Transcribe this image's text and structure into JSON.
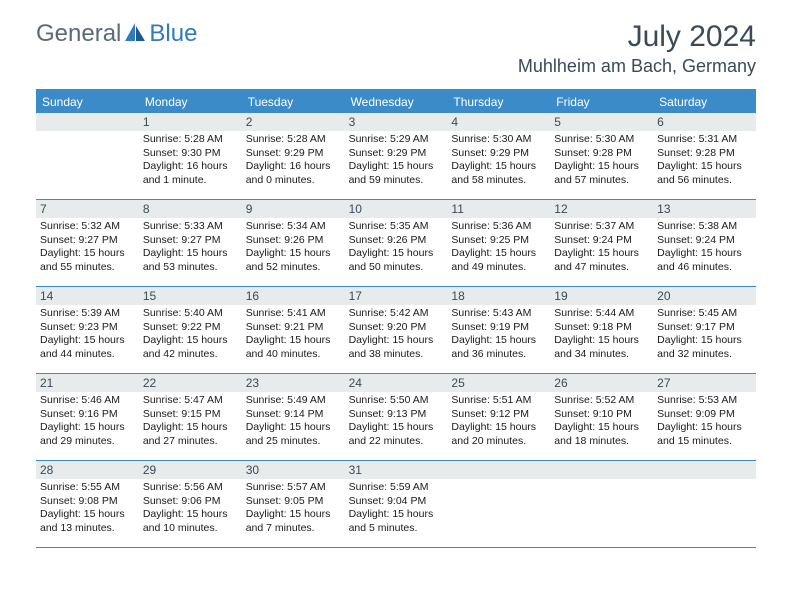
{
  "brand": {
    "part1": "General",
    "part2": "Blue"
  },
  "title": "July 2024",
  "location": "Muhlheim am Bach, Germany",
  "colors": {
    "header_bar": "#3b8bc9",
    "daynum_bg": "#e8ebec",
    "text_dark": "#3a4a58",
    "logo_gray": "#5a6a78",
    "logo_blue": "#2f7bbf"
  },
  "weekdays": [
    "Sunday",
    "Monday",
    "Tuesday",
    "Wednesday",
    "Thursday",
    "Friday",
    "Saturday"
  ],
  "weeks": [
    [
      null,
      {
        "n": "1",
        "sr": "Sunrise: 5:28 AM",
        "ss": "Sunset: 9:30 PM",
        "dl": "Daylight: 16 hours and 1 minute."
      },
      {
        "n": "2",
        "sr": "Sunrise: 5:28 AM",
        "ss": "Sunset: 9:29 PM",
        "dl": "Daylight: 16 hours and 0 minutes."
      },
      {
        "n": "3",
        "sr": "Sunrise: 5:29 AM",
        "ss": "Sunset: 9:29 PM",
        "dl": "Daylight: 15 hours and 59 minutes."
      },
      {
        "n": "4",
        "sr": "Sunrise: 5:30 AM",
        "ss": "Sunset: 9:29 PM",
        "dl": "Daylight: 15 hours and 58 minutes."
      },
      {
        "n": "5",
        "sr": "Sunrise: 5:30 AM",
        "ss": "Sunset: 9:28 PM",
        "dl": "Daylight: 15 hours and 57 minutes."
      },
      {
        "n": "6",
        "sr": "Sunrise: 5:31 AM",
        "ss": "Sunset: 9:28 PM",
        "dl": "Daylight: 15 hours and 56 minutes."
      }
    ],
    [
      {
        "n": "7",
        "sr": "Sunrise: 5:32 AM",
        "ss": "Sunset: 9:27 PM",
        "dl": "Daylight: 15 hours and 55 minutes."
      },
      {
        "n": "8",
        "sr": "Sunrise: 5:33 AM",
        "ss": "Sunset: 9:27 PM",
        "dl": "Daylight: 15 hours and 53 minutes."
      },
      {
        "n": "9",
        "sr": "Sunrise: 5:34 AM",
        "ss": "Sunset: 9:26 PM",
        "dl": "Daylight: 15 hours and 52 minutes."
      },
      {
        "n": "10",
        "sr": "Sunrise: 5:35 AM",
        "ss": "Sunset: 9:26 PM",
        "dl": "Daylight: 15 hours and 50 minutes."
      },
      {
        "n": "11",
        "sr": "Sunrise: 5:36 AM",
        "ss": "Sunset: 9:25 PM",
        "dl": "Daylight: 15 hours and 49 minutes."
      },
      {
        "n": "12",
        "sr": "Sunrise: 5:37 AM",
        "ss": "Sunset: 9:24 PM",
        "dl": "Daylight: 15 hours and 47 minutes."
      },
      {
        "n": "13",
        "sr": "Sunrise: 5:38 AM",
        "ss": "Sunset: 9:24 PM",
        "dl": "Daylight: 15 hours and 46 minutes."
      }
    ],
    [
      {
        "n": "14",
        "sr": "Sunrise: 5:39 AM",
        "ss": "Sunset: 9:23 PM",
        "dl": "Daylight: 15 hours and 44 minutes."
      },
      {
        "n": "15",
        "sr": "Sunrise: 5:40 AM",
        "ss": "Sunset: 9:22 PM",
        "dl": "Daylight: 15 hours and 42 minutes."
      },
      {
        "n": "16",
        "sr": "Sunrise: 5:41 AM",
        "ss": "Sunset: 9:21 PM",
        "dl": "Daylight: 15 hours and 40 minutes."
      },
      {
        "n": "17",
        "sr": "Sunrise: 5:42 AM",
        "ss": "Sunset: 9:20 PM",
        "dl": "Daylight: 15 hours and 38 minutes."
      },
      {
        "n": "18",
        "sr": "Sunrise: 5:43 AM",
        "ss": "Sunset: 9:19 PM",
        "dl": "Daylight: 15 hours and 36 minutes."
      },
      {
        "n": "19",
        "sr": "Sunrise: 5:44 AM",
        "ss": "Sunset: 9:18 PM",
        "dl": "Daylight: 15 hours and 34 minutes."
      },
      {
        "n": "20",
        "sr": "Sunrise: 5:45 AM",
        "ss": "Sunset: 9:17 PM",
        "dl": "Daylight: 15 hours and 32 minutes."
      }
    ],
    [
      {
        "n": "21",
        "sr": "Sunrise: 5:46 AM",
        "ss": "Sunset: 9:16 PM",
        "dl": "Daylight: 15 hours and 29 minutes."
      },
      {
        "n": "22",
        "sr": "Sunrise: 5:47 AM",
        "ss": "Sunset: 9:15 PM",
        "dl": "Daylight: 15 hours and 27 minutes."
      },
      {
        "n": "23",
        "sr": "Sunrise: 5:49 AM",
        "ss": "Sunset: 9:14 PM",
        "dl": "Daylight: 15 hours and 25 minutes."
      },
      {
        "n": "24",
        "sr": "Sunrise: 5:50 AM",
        "ss": "Sunset: 9:13 PM",
        "dl": "Daylight: 15 hours and 22 minutes."
      },
      {
        "n": "25",
        "sr": "Sunrise: 5:51 AM",
        "ss": "Sunset: 9:12 PM",
        "dl": "Daylight: 15 hours and 20 minutes."
      },
      {
        "n": "26",
        "sr": "Sunrise: 5:52 AM",
        "ss": "Sunset: 9:10 PM",
        "dl": "Daylight: 15 hours and 18 minutes."
      },
      {
        "n": "27",
        "sr": "Sunrise: 5:53 AM",
        "ss": "Sunset: 9:09 PM",
        "dl": "Daylight: 15 hours and 15 minutes."
      }
    ],
    [
      {
        "n": "28",
        "sr": "Sunrise: 5:55 AM",
        "ss": "Sunset: 9:08 PM",
        "dl": "Daylight: 15 hours and 13 minutes."
      },
      {
        "n": "29",
        "sr": "Sunrise: 5:56 AM",
        "ss": "Sunset: 9:06 PM",
        "dl": "Daylight: 15 hours and 10 minutes."
      },
      {
        "n": "30",
        "sr": "Sunrise: 5:57 AM",
        "ss": "Sunset: 9:05 PM",
        "dl": "Daylight: 15 hours and 7 minutes."
      },
      {
        "n": "31",
        "sr": "Sunrise: 5:59 AM",
        "ss": "Sunset: 9:04 PM",
        "dl": "Daylight: 15 hours and 5 minutes."
      },
      null,
      null,
      null
    ]
  ]
}
